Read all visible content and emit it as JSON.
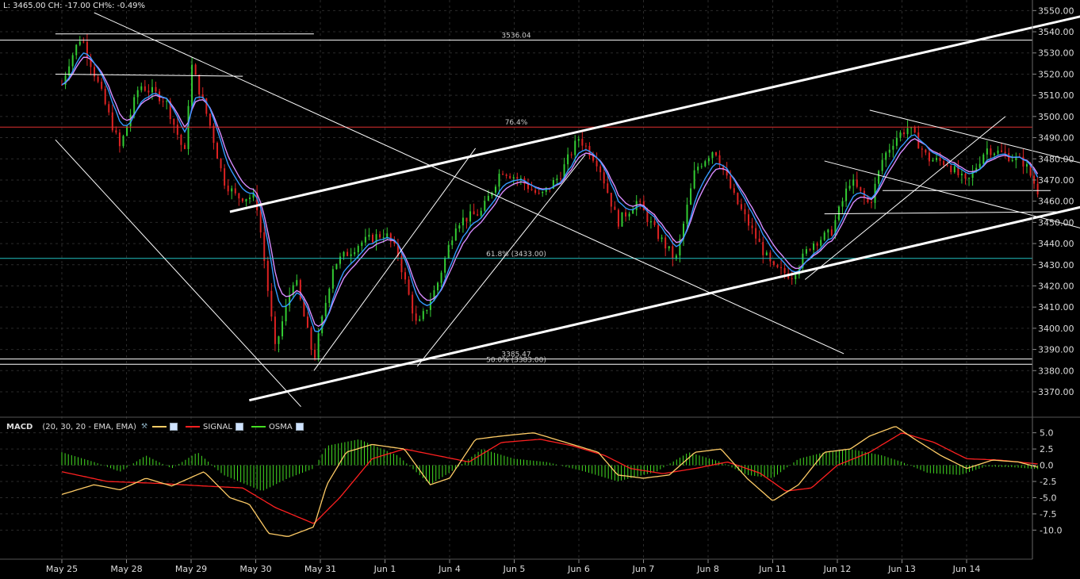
{
  "info_bar": {
    "text": "L: 3465.00 CH: -17.00 CH%: -0.49%"
  },
  "macd_legend": {
    "name": "MACD",
    "params": "(20, 30, 20 - EMA, EMA)",
    "signal_label": "SIGNAL",
    "osma_label": "OSMA",
    "macd_color": "#ffcc66",
    "signal_color": "#ff2020",
    "osma_color": "#44dd22"
  },
  "chart_data": [
    {
      "type": "candlestick",
      "x_ticks": [
        "May 25",
        "May 28",
        "May 29",
        "May 30",
        "May 31",
        "Jun 1",
        "Jun 4",
        "Jun 5",
        "Jun 6",
        "Jun 7",
        "Jun 8",
        "Jun 11",
        "Jun 12",
        "Jun 13",
        "Jun 14"
      ],
      "y_ticks": [
        3370,
        3380,
        3390,
        3400,
        3410,
        3420,
        3430,
        3440,
        3450,
        3460,
        3470,
        3480,
        3490,
        3500,
        3510,
        3520,
        3530,
        3540,
        3550
      ],
      "ylim": [
        3364,
        3552
      ],
      "price_path": [
        {
          "x": 0,
          "y": 3515
        },
        {
          "x": 0.1,
          "y": 3525
        },
        {
          "x": 0.3,
          "y": 3538
        },
        {
          "x": 0.6,
          "y": 3512
        },
        {
          "x": 0.9,
          "y": 3485
        },
        {
          "x": 1.2,
          "y": 3515
        },
        {
          "x": 1.6,
          "y": 3508
        },
        {
          "x": 1.9,
          "y": 3482
        },
        {
          "x": 2.0,
          "y": 3525
        },
        {
          "x": 2.3,
          "y": 3495
        },
        {
          "x": 2.5,
          "y": 3470
        },
        {
          "x": 2.7,
          "y": 3462
        },
        {
          "x": 3.0,
          "y": 3462
        },
        {
          "x": 3.1,
          "y": 3440
        },
        {
          "x": 3.3,
          "y": 3390
        },
        {
          "x": 3.6,
          "y": 3425
        },
        {
          "x": 3.9,
          "y": 3385
        },
        {
          "x": 4.2,
          "y": 3430
        },
        {
          "x": 4.6,
          "y": 3440
        },
        {
          "x": 5.0,
          "y": 3445
        },
        {
          "x": 5.2,
          "y": 3435
        },
        {
          "x": 5.5,
          "y": 3400
        },
        {
          "x": 5.8,
          "y": 3420
        },
        {
          "x": 6.1,
          "y": 3450
        },
        {
          "x": 6.5,
          "y": 3455
        },
        {
          "x": 6.8,
          "y": 3475
        },
        {
          "x": 7.1,
          "y": 3470
        },
        {
          "x": 7.4,
          "y": 3462
        },
        {
          "x": 7.7,
          "y": 3472
        },
        {
          "x": 8.0,
          "y": 3490
        },
        {
          "x": 8.3,
          "y": 3478
        },
        {
          "x": 8.6,
          "y": 3450
        },
        {
          "x": 8.9,
          "y": 3460
        },
        {
          "x": 9.2,
          "y": 3445
        },
        {
          "x": 9.5,
          "y": 3432
        },
        {
          "x": 9.8,
          "y": 3475
        },
        {
          "x": 10.1,
          "y": 3485
        },
        {
          "x": 10.4,
          "y": 3462
        },
        {
          "x": 10.7,
          "y": 3445
        },
        {
          "x": 11.0,
          "y": 3428
        },
        {
          "x": 11.3,
          "y": 3425
        },
        {
          "x": 11.6,
          "y": 3440
        },
        {
          "x": 11.9,
          "y": 3445
        },
        {
          "x": 12.2,
          "y": 3470
        },
        {
          "x": 12.5,
          "y": 3458
        },
        {
          "x": 12.7,
          "y": 3480
        },
        {
          "x": 12.9,
          "y": 3490
        },
        {
          "x": 13.1,
          "y": 3495
        },
        {
          "x": 13.4,
          "y": 3480
        },
        {
          "x": 13.7,
          "y": 3478
        },
        {
          "x": 14.0,
          "y": 3468
        },
        {
          "x": 14.3,
          "y": 3485
        },
        {
          "x": 14.6,
          "y": 3482
        },
        {
          "x": 14.9,
          "y": 3478
        },
        {
          "x": 15.1,
          "y": 3465
        }
      ],
      "horizontal_levels": [
        {
          "label": "3536.04",
          "value": 3536.04,
          "color": "#ffffff"
        },
        {
          "label": "76.4%",
          "value": 3495,
          "color": "#e03030"
        },
        {
          "label": "61.8% (3433.00)",
          "value": 3433,
          "color": "#20c0c0"
        },
        {
          "label": "3385.47",
          "value": 3385.47,
          "color": "#ffffff"
        },
        {
          "label": "50.0% (3383.00)",
          "value": 3383,
          "color": "#ffffff"
        }
      ],
      "trend_lines": [
        {
          "x1": 2.6,
          "y1": 3455,
          "x2": 16.3,
          "y2": 3551,
          "width": 3
        },
        {
          "x1": 2.9,
          "y1": 3366,
          "x2": 16.3,
          "y2": 3461,
          "width": 3
        },
        {
          "x1": 0.5,
          "y1": 3549,
          "x2": 12.1,
          "y2": 3388,
          "width": 1
        },
        {
          "x1": -0.1,
          "y1": 3489,
          "x2": 3.7,
          "y2": 3363,
          "width": 1
        },
        {
          "x1": 3.9,
          "y1": 3380,
          "x2": 6.4,
          "y2": 3485,
          "width": 1
        },
        {
          "x1": 5.5,
          "y1": 3382,
          "x2": 8.1,
          "y2": 3482,
          "width": 1
        },
        {
          "x1": 11.5,
          "y1": 3423,
          "x2": 14.6,
          "y2": 3500,
          "width": 1
        },
        {
          "x1": 12.5,
          "y1": 3503,
          "x2": 16.3,
          "y2": 3474,
          "width": 1
        },
        {
          "x1": 11.8,
          "y1": 3479,
          "x2": 16.3,
          "y2": 3443,
          "width": 1
        },
        {
          "x1": -0.1,
          "y1": 3520,
          "x2": 2.8,
          "y2": 3519,
          "width": 1
        },
        {
          "x1": -0.1,
          "y1": 3539,
          "x2": 3.9,
          "y2": 3539,
          "width": 1
        },
        {
          "x1": 11.8,
          "y1": 3454,
          "x2": 15.4,
          "y2": 3455,
          "width": 1
        },
        {
          "x1": 12.7,
          "y1": 3465,
          "x2": 15.3,
          "y2": 3465,
          "width": 1
        }
      ]
    },
    {
      "type": "bar_line",
      "name": "MACD (20, 30, 20 - EMA, EMA)",
      "y_ticks": [
        5.0,
        2.5,
        0.0,
        -2.5,
        -5.0,
        -7.5,
        -10.0
      ],
      "ylim": [
        -11.3,
        6.3
      ],
      "macd_path": [
        {
          "x": 0,
          "y": -4.5
        },
        {
          "x": 0.5,
          "y": -3.0
        },
        {
          "x": 0.9,
          "y": -3.8
        },
        {
          "x": 1.3,
          "y": -2.0
        },
        {
          "x": 1.7,
          "y": -3.2
        },
        {
          "x": 2.2,
          "y": -1.0
        },
        {
          "x": 2.6,
          "y": -5.0
        },
        {
          "x": 2.9,
          "y": -6.0
        },
        {
          "x": 3.2,
          "y": -10.5
        },
        {
          "x": 3.5,
          "y": -11.0
        },
        {
          "x": 3.9,
          "y": -9.5
        },
        {
          "x": 4.1,
          "y": -3.0
        },
        {
          "x": 4.4,
          "y": 2.0
        },
        {
          "x": 4.8,
          "y": 3.2
        },
        {
          "x": 5.3,
          "y": 2.5
        },
        {
          "x": 5.7,
          "y": -3.0
        },
        {
          "x": 6.0,
          "y": -2.0
        },
        {
          "x": 6.4,
          "y": 4.0
        },
        {
          "x": 6.8,
          "y": 4.5
        },
        {
          "x": 7.3,
          "y": 5.0
        },
        {
          "x": 7.8,
          "y": 3.5
        },
        {
          "x": 8.3,
          "y": 2.0
        },
        {
          "x": 8.6,
          "y": -1.5
        },
        {
          "x": 9.0,
          "y": -2.0
        },
        {
          "x": 9.4,
          "y": -1.5
        },
        {
          "x": 9.8,
          "y": 2.0
        },
        {
          "x": 10.2,
          "y": 2.5
        },
        {
          "x": 10.6,
          "y": -2.0
        },
        {
          "x": 11.0,
          "y": -5.5
        },
        {
          "x": 11.4,
          "y": -3.0
        },
        {
          "x": 11.8,
          "y": 2.0
        },
        {
          "x": 12.2,
          "y": 2.5
        },
        {
          "x": 12.5,
          "y": 4.5
        },
        {
          "x": 12.9,
          "y": 6.0
        },
        {
          "x": 13.2,
          "y": 4.0
        },
        {
          "x": 13.6,
          "y": 1.5
        },
        {
          "x": 14.0,
          "y": -0.5
        },
        {
          "x": 14.4,
          "y": 0.8
        },
        {
          "x": 14.8,
          "y": 0.5
        },
        {
          "x": 15.1,
          "y": -0.3
        }
      ],
      "signal_path": [
        {
          "x": 0,
          "y": -1.0
        },
        {
          "x": 0.7,
          "y": -2.5
        },
        {
          "x": 1.5,
          "y": -2.8
        },
        {
          "x": 2.2,
          "y": -3.2
        },
        {
          "x": 2.8,
          "y": -3.5
        },
        {
          "x": 3.3,
          "y": -6.5
        },
        {
          "x": 3.9,
          "y": -9.0
        },
        {
          "x": 4.3,
          "y": -5.0
        },
        {
          "x": 4.8,
          "y": 1.0
        },
        {
          "x": 5.3,
          "y": 2.5
        },
        {
          "x": 5.8,
          "y": 1.5
        },
        {
          "x": 6.3,
          "y": 0.5
        },
        {
          "x": 6.8,
          "y": 3.5
        },
        {
          "x": 7.4,
          "y": 4.0
        },
        {
          "x": 7.9,
          "y": 3.0
        },
        {
          "x": 8.4,
          "y": 1.5
        },
        {
          "x": 8.8,
          "y": -0.5
        },
        {
          "x": 9.3,
          "y": -1.3
        },
        {
          "x": 9.8,
          "y": -0.5
        },
        {
          "x": 10.3,
          "y": 0.5
        },
        {
          "x": 10.8,
          "y": -1.2
        },
        {
          "x": 11.2,
          "y": -4.0
        },
        {
          "x": 11.6,
          "y": -3.5
        },
        {
          "x": 12.0,
          "y": 0.0
        },
        {
          "x": 12.5,
          "y": 2.0
        },
        {
          "x": 13.0,
          "y": 5.0
        },
        {
          "x": 13.5,
          "y": 3.5
        },
        {
          "x": 14.0,
          "y": 1.0
        },
        {
          "x": 14.5,
          "y": 0.8
        },
        {
          "x": 15.1,
          "y": 0.2
        }
      ],
      "osma_path": [
        {
          "x": 0,
          "y": 2.0
        },
        {
          "x": 0.5,
          "y": 0.5
        },
        {
          "x": 0.9,
          "y": -1.0
        },
        {
          "x": 1.3,
          "y": 1.5
        },
        {
          "x": 1.7,
          "y": -0.5
        },
        {
          "x": 2.1,
          "y": 2.0
        },
        {
          "x": 2.5,
          "y": -1.5
        },
        {
          "x": 3.1,
          "y": -4.0
        },
        {
          "x": 3.5,
          "y": -2.0
        },
        {
          "x": 3.9,
          "y": -0.5
        },
        {
          "x": 4.1,
          "y": 3.0
        },
        {
          "x": 4.6,
          "y": 4.0
        },
        {
          "x": 5.2,
          "y": 1.5
        },
        {
          "x": 5.7,
          "y": -3.0
        },
        {
          "x": 6.1,
          "y": -0.5
        },
        {
          "x": 6.5,
          "y": 2.5
        },
        {
          "x": 7.0,
          "y": 1.0
        },
        {
          "x": 7.5,
          "y": 0.5
        },
        {
          "x": 8.1,
          "y": -1.0
        },
        {
          "x": 8.6,
          "y": -2.5
        },
        {
          "x": 9.2,
          "y": -1.0
        },
        {
          "x": 9.7,
          "y": 2.0
        },
        {
          "x": 10.2,
          "y": 0.5
        },
        {
          "x": 10.6,
          "y": -1.5
        },
        {
          "x": 11.0,
          "y": -2.0
        },
        {
          "x": 11.4,
          "y": 1.0
        },
        {
          "x": 11.8,
          "y": 2.0
        },
        {
          "x": 12.2,
          "y": 2.5
        },
        {
          "x": 12.7,
          "y": 1.5
        },
        {
          "x": 13.0,
          "y": 0.5
        },
        {
          "x": 13.4,
          "y": -1.2
        },
        {
          "x": 13.9,
          "y": -1.5
        },
        {
          "x": 14.3,
          "y": -0.2
        },
        {
          "x": 14.7,
          "y": -0.3
        },
        {
          "x": 15.1,
          "y": -0.6
        }
      ]
    }
  ]
}
